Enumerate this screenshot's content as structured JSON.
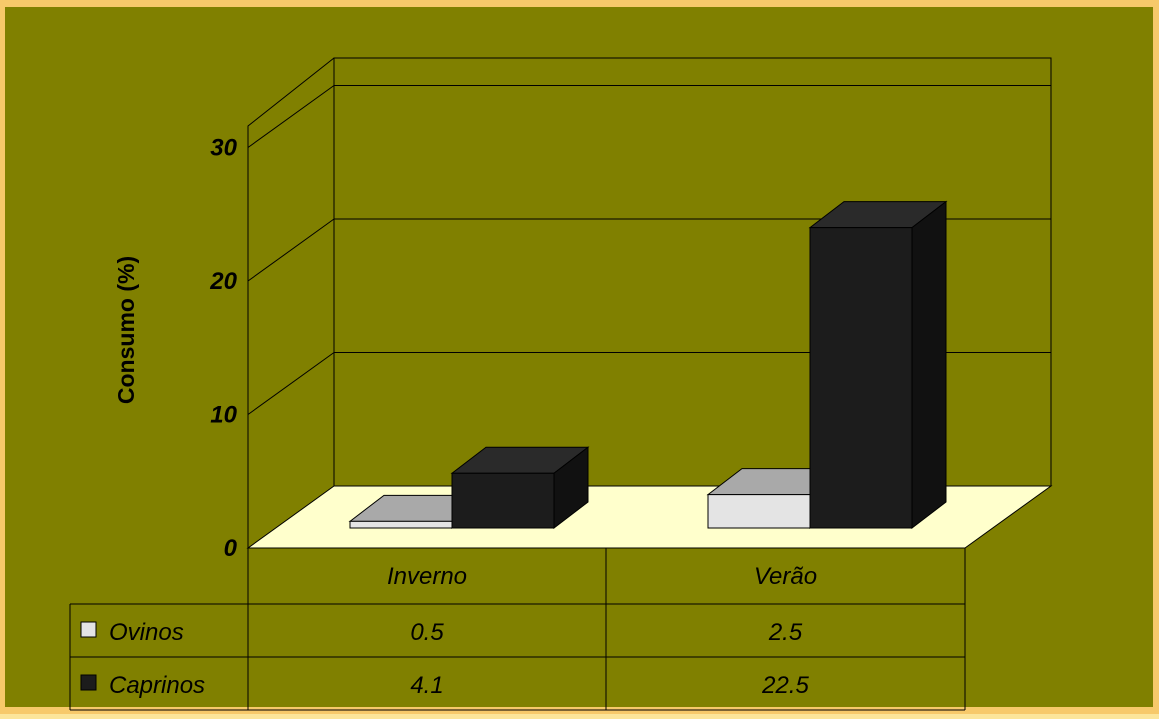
{
  "colors": {
    "border": "#f7c96a",
    "plot_area": "#808000",
    "floor": "#ffffcc",
    "ovinos": "#e4e4e4",
    "caprinos": "#1c1c1c"
  },
  "chart_data": {
    "type": "bar",
    "subtype": "3d-clustered-with-data-table",
    "title": "",
    "ylabel": "Consumo (%)",
    "xlabel": "",
    "ylim": [
      0,
      30
    ],
    "yticks": [
      "0",
      "10",
      "20",
      "30"
    ],
    "grid": true,
    "categories": [
      "Inverno",
      "Verão"
    ],
    "series": [
      {
        "name": "Ovinos",
        "values": [
          0.5,
          2.5
        ],
        "labels": [
          "0.5",
          "2.5"
        ]
      },
      {
        "name": "Caprinos",
        "values": [
          4.1,
          22.5
        ],
        "labels": [
          "4.1",
          "22.5"
        ]
      }
    ]
  }
}
